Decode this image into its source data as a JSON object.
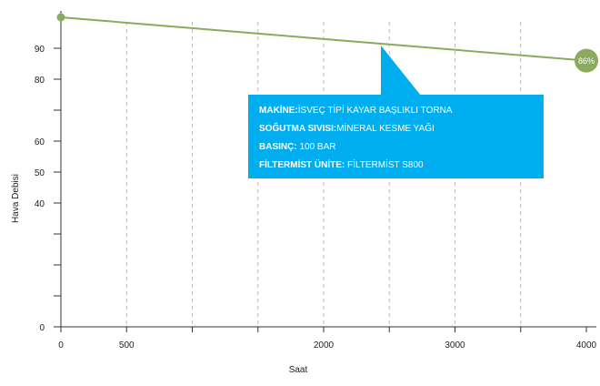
{
  "chart_data": {
    "type": "line",
    "xlabel": "Saat",
    "ylabel": "Hava Debisi",
    "xlim": [
      0,
      4000
    ],
    "ylim": [
      0,
      100
    ],
    "x_ticks": [
      0,
      500,
      1000,
      1500,
      2000,
      2500,
      3000,
      3500,
      4000
    ],
    "x_tick_labels": [
      "0",
      "500",
      "",
      "",
      "2000",
      "",
      "3000",
      "",
      "4000"
    ],
    "y_ticks": [
      0,
      10,
      20,
      30,
      40,
      50,
      60,
      70,
      80,
      90
    ],
    "y_tick_labels": [
      "0",
      "",
      "",
      "",
      "40",
      "50",
      "60",
      "",
      "80",
      "90"
    ],
    "grid": "vertical-dashed",
    "series": [
      {
        "color": "#8aaa5e",
        "points": [
          {
            "x": 0,
            "y": 100
          },
          {
            "x": 4000,
            "y": 86
          }
        ],
        "end_label": "86%"
      }
    ],
    "tooltip": {
      "color": "#00aeef",
      "lines": [
        {
          "key": "MAKİNE:",
          "value": "İSVEÇ TİPİ KAYAR BAŞLIKLI TORNA"
        },
        {
          "key": "SOĞUTMA SIVISI:",
          "value": "MİNERAL KESME YAĞI"
        },
        {
          "key": "BASINÇ:",
          "value": " 100 BAR"
        },
        {
          "key": "FİLTERMİST ÜNİTE:",
          "value": " FİLTERMİST S800"
        }
      ]
    }
  }
}
